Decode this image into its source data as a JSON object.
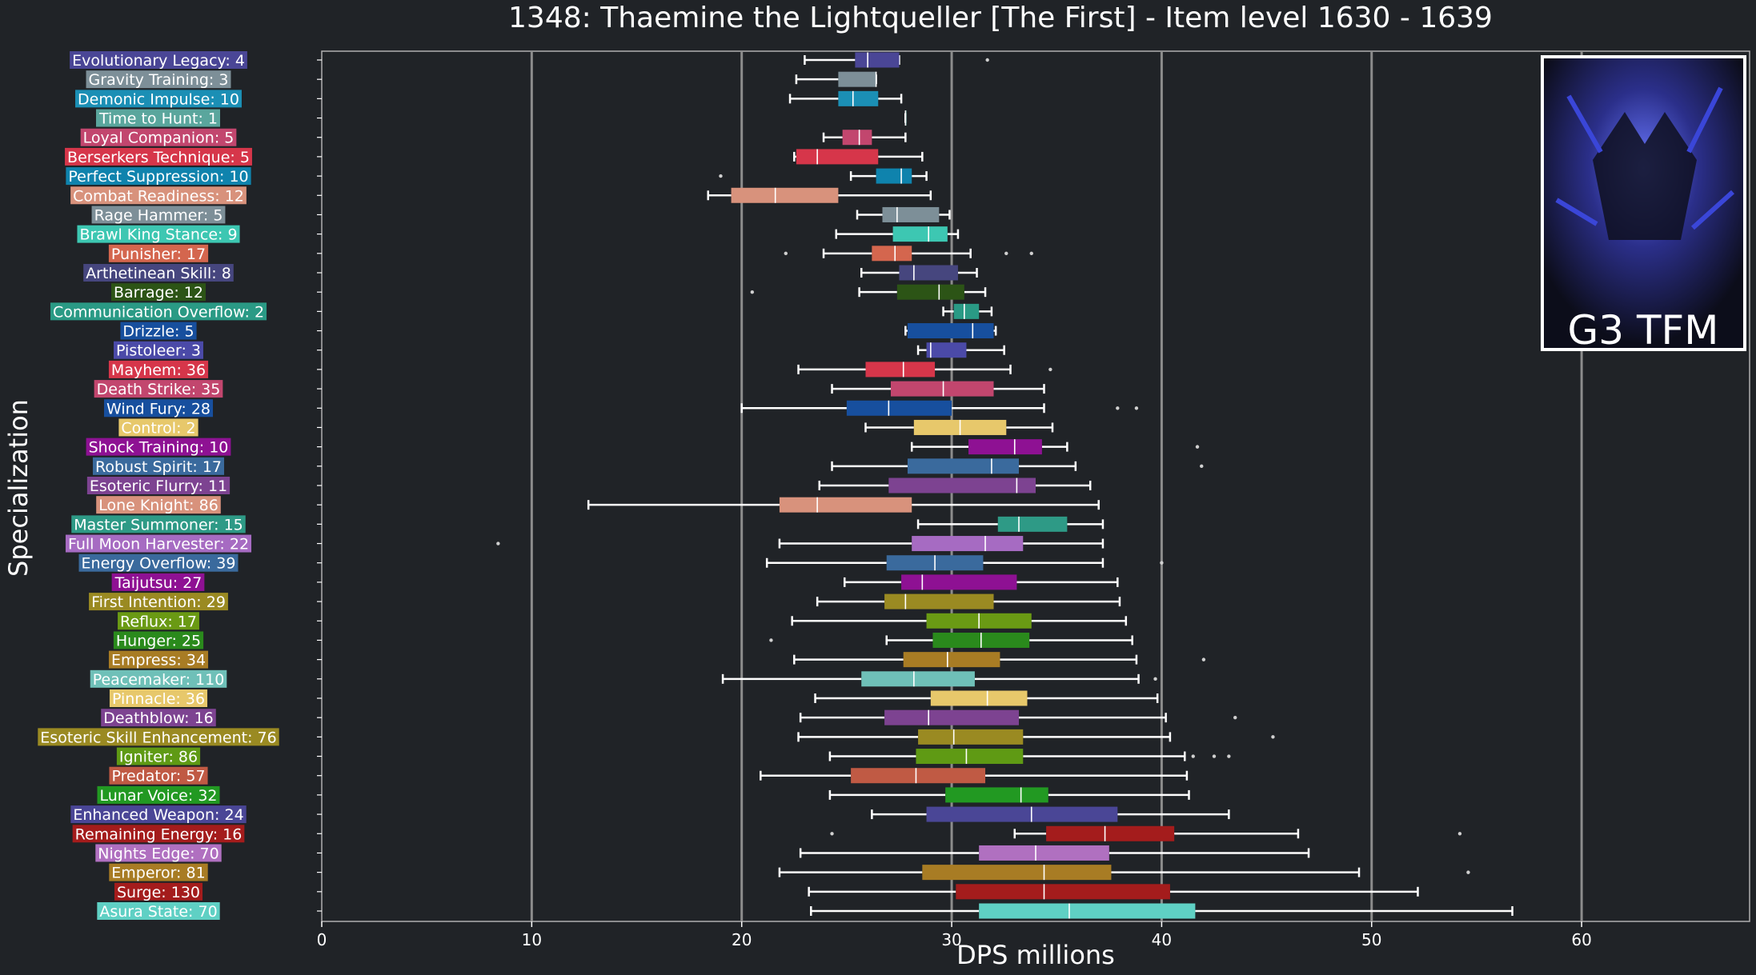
{
  "chart_data": {
    "type": "boxplot",
    "orientation": "horizontal",
    "title": "1348: Thaemine the Lightqueller [The First] - Item level 1630 - 1639",
    "xlabel": "DPS millions",
    "ylabel": "Specialization",
    "xlim": [
      0,
      68
    ],
    "xticks": [
      0,
      10,
      20,
      30,
      40,
      50,
      60
    ],
    "grid": "vertical",
    "badge_text": "G3 TFM",
    "colors": {
      "background": "#202327",
      "grid": "#8c8c8c",
      "text": "#ffffff",
      "whisker": "#ffffff"
    },
    "series": [
      {
        "label": "Evolutionary Legacy: 4",
        "color": "#4a4696",
        "whislo": 23.0,
        "q1": 25.4,
        "med": 26.0,
        "q3": 27.5,
        "whishi": 27.5,
        "fliers": [
          31.7
        ]
      },
      {
        "label": "Gravity Training: 3",
        "color": "#7d8f98",
        "whislo": 22.6,
        "q1": 24.6,
        "med": 26.4,
        "q3": 26.4,
        "whishi": 26.4,
        "fliers": []
      },
      {
        "label": "Demonic Impulse: 10",
        "color": "#1b8fb5",
        "whislo": 22.3,
        "q1": 24.6,
        "med": 25.3,
        "q3": 26.5,
        "whishi": 27.6,
        "fliers": []
      },
      {
        "label": "Time to Hunt: 1",
        "color": "#5aa69d",
        "whislo": 27.8,
        "q1": 27.8,
        "med": 27.8,
        "q3": 27.8,
        "whishi": 27.8,
        "fliers": []
      },
      {
        "label": "Loyal Companion: 5",
        "color": "#c2466e",
        "whislo": 23.9,
        "q1": 24.8,
        "med": 25.6,
        "q3": 26.2,
        "whishi": 27.8,
        "fliers": []
      },
      {
        "label": "Berserkers Technique: 5",
        "color": "#d6364a",
        "whislo": 22.5,
        "q1": 22.6,
        "med": 23.6,
        "q3": 26.5,
        "whishi": 28.6,
        "fliers": []
      },
      {
        "label": "Perfect Suppression: 10",
        "color": "#0f83ad",
        "whislo": 25.2,
        "q1": 26.4,
        "med": 27.6,
        "q3": 28.1,
        "whishi": 28.8,
        "fliers": [
          19.0
        ]
      },
      {
        "label": "Combat Readiness: 12",
        "color": "#d8927c",
        "whislo": 18.4,
        "q1": 19.5,
        "med": 21.6,
        "q3": 24.6,
        "whishi": 29.0,
        "fliers": []
      },
      {
        "label": "Rage Hammer: 5",
        "color": "#7d8f98",
        "whislo": 25.5,
        "q1": 26.7,
        "med": 27.4,
        "q3": 29.4,
        "whishi": 29.9,
        "fliers": []
      },
      {
        "label": "Brawl King Stance: 9",
        "color": "#3dc7b2",
        "whislo": 24.5,
        "q1": 27.2,
        "med": 28.9,
        "q3": 29.8,
        "whishi": 30.3,
        "fliers": []
      },
      {
        "label": "Punisher: 17",
        "color": "#d4664e",
        "whislo": 23.9,
        "q1": 26.2,
        "med": 27.3,
        "q3": 28.1,
        "whishi": 30.9,
        "fliers": [
          22.1,
          32.6,
          33.8
        ]
      },
      {
        "label": "Arthetinean Skill: 8",
        "color": "#46467e",
        "whislo": 25.7,
        "q1": 27.5,
        "med": 28.2,
        "q3": 30.3,
        "whishi": 31.2,
        "fliers": []
      },
      {
        "label": "Barrage: 12",
        "color": "#2c5416",
        "whislo": 25.6,
        "q1": 27.4,
        "med": 29.4,
        "q3": 30.6,
        "whishi": 31.6,
        "fliers": [
          20.5
        ]
      },
      {
        "label": "Communication Overflow: 2",
        "color": "#2a9a85",
        "whislo": 29.6,
        "q1": 30.1,
        "med": 30.6,
        "q3": 31.3,
        "whishi": 31.9,
        "fliers": []
      },
      {
        "label": "Drizzle: 5",
        "color": "#174f9e",
        "whislo": 27.8,
        "q1": 27.9,
        "med": 31.0,
        "q3": 32.0,
        "whishi": 32.1,
        "fliers": []
      },
      {
        "label": "Pistoleer: 3",
        "color": "#4b4aa8",
        "whislo": 28.4,
        "q1": 28.8,
        "med": 29.0,
        "q3": 30.7,
        "whishi": 32.5,
        "fliers": []
      },
      {
        "label": "Mayhem: 36",
        "color": "#d6364a",
        "whislo": 22.7,
        "q1": 25.9,
        "med": 27.7,
        "q3": 29.2,
        "whishi": 32.8,
        "fliers": [
          34.7
        ]
      },
      {
        "label": "Death Strike: 35",
        "color": "#c2466e",
        "whislo": 24.3,
        "q1": 27.1,
        "med": 29.6,
        "q3": 32.0,
        "whishi": 34.4,
        "fliers": []
      },
      {
        "label": "Wind Fury: 28",
        "color": "#174f9e",
        "whislo": 20.0,
        "q1": 25.0,
        "med": 27.0,
        "q3": 30.0,
        "whishi": 34.4,
        "fliers": [
          37.9,
          38.8
        ]
      },
      {
        "label": "Control: 2",
        "color": "#e7c86b",
        "whislo": 25.9,
        "q1": 28.2,
        "med": 30.4,
        "q3": 32.6,
        "whishi": 34.8,
        "fliers": []
      },
      {
        "label": "Shock Training: 10",
        "color": "#8e1193",
        "whislo": 28.1,
        "q1": 30.8,
        "med": 33.0,
        "q3": 34.3,
        "whishi": 35.5,
        "fliers": [
          41.7
        ]
      },
      {
        "label": "Robust Spirit: 17",
        "color": "#3a6a9d",
        "whislo": 24.3,
        "q1": 27.9,
        "med": 31.9,
        "q3": 33.2,
        "whishi": 35.9,
        "fliers": [
          41.9
        ]
      },
      {
        "label": "Esoteric Flurry: 11",
        "color": "#7d4391",
        "whislo": 23.7,
        "q1": 27.0,
        "med": 33.1,
        "q3": 34.0,
        "whishi": 36.6,
        "fliers": []
      },
      {
        "label": "Lone Knight: 86",
        "color": "#d8927c",
        "whislo": 12.7,
        "q1": 21.8,
        "med": 23.6,
        "q3": 28.1,
        "whishi": 37.0,
        "fliers": []
      },
      {
        "label": "Master Summoner: 15",
        "color": "#2e9a86",
        "whislo": 28.4,
        "q1": 32.2,
        "med": 33.2,
        "q3": 35.5,
        "whishi": 37.2,
        "fliers": []
      },
      {
        "label": "Full Moon Harvester: 22",
        "color": "#a66bc2",
        "whislo": 21.8,
        "q1": 28.1,
        "med": 31.6,
        "q3": 33.4,
        "whishi": 37.2,
        "fliers": [
          8.4
        ]
      },
      {
        "label": "Energy Overflow: 39",
        "color": "#3a6a9d",
        "whislo": 21.2,
        "q1": 26.9,
        "med": 29.2,
        "q3": 31.5,
        "whishi": 37.2,
        "fliers": [
          40.0
        ]
      },
      {
        "label": "Taijutsu: 27",
        "color": "#8e1193",
        "whislo": 24.9,
        "q1": 27.6,
        "med": 28.6,
        "q3": 33.1,
        "whishi": 37.9,
        "fliers": []
      },
      {
        "label": "First Intention: 29",
        "color": "#9a8a22",
        "whislo": 23.6,
        "q1": 26.8,
        "med": 27.8,
        "q3": 32.0,
        "whishi": 38.0,
        "fliers": []
      },
      {
        "label": "Reflux: 17",
        "color": "#6a9a14",
        "whislo": 22.4,
        "q1": 28.8,
        "med": 31.3,
        "q3": 33.8,
        "whishi": 38.3,
        "fliers": []
      },
      {
        "label": "Hunger: 25",
        "color": "#2a8a1c",
        "whislo": 26.9,
        "q1": 29.1,
        "med": 31.4,
        "q3": 33.7,
        "whishi": 38.6,
        "fliers": [
          21.4
        ]
      },
      {
        "label": "Empress: 34",
        "color": "#a87c24",
        "whislo": 22.5,
        "q1": 27.7,
        "med": 29.8,
        "q3": 32.3,
        "whishi": 38.8,
        "fliers": [
          42.0
        ]
      },
      {
        "label": "Peacemaker: 110",
        "color": "#6fc0b8",
        "whislo": 19.1,
        "q1": 25.7,
        "med": 28.2,
        "q3": 31.1,
        "whishi": 38.9,
        "fliers": [
          39.7
        ]
      },
      {
        "label": "Pinnacle: 36",
        "color": "#e7c86b",
        "whislo": 23.5,
        "q1": 29.0,
        "med": 31.7,
        "q3": 33.6,
        "whishi": 39.8,
        "fliers": []
      },
      {
        "label": "Deathblow: 16",
        "color": "#7d4391",
        "whislo": 22.8,
        "q1": 26.8,
        "med": 28.9,
        "q3": 33.2,
        "whishi": 40.2,
        "fliers": [
          43.5
        ]
      },
      {
        "label": "Esoteric Skill Enhancement: 76",
        "color": "#9a8a22",
        "whislo": 22.7,
        "q1": 28.4,
        "med": 30.1,
        "q3": 33.4,
        "whishi": 40.4,
        "fliers": [
          45.3
        ]
      },
      {
        "label": "Igniter: 86",
        "color": "#5f9a14",
        "whislo": 24.2,
        "q1": 28.3,
        "med": 30.7,
        "q3": 33.4,
        "whishi": 41.1,
        "fliers": [
          41.5,
          42.5,
          43.2
        ]
      },
      {
        "label": "Predator: 57",
        "color": "#c05a44",
        "whislo": 20.9,
        "q1": 25.2,
        "med": 28.3,
        "q3": 31.6,
        "whishi": 41.2,
        "fliers": []
      },
      {
        "label": "Lunar Voice: 32",
        "color": "#229922",
        "whislo": 24.2,
        "q1": 29.7,
        "med": 33.3,
        "q3": 34.6,
        "whishi": 41.3,
        "fliers": []
      },
      {
        "label": "Enhanced Weapon: 24",
        "color": "#4a4696",
        "whislo": 26.2,
        "q1": 28.8,
        "med": 33.8,
        "q3": 37.9,
        "whishi": 43.2,
        "fliers": []
      },
      {
        "label": "Remaining Energy: 16",
        "color": "#a41c1c",
        "whislo": 33.0,
        "q1": 34.5,
        "med": 37.3,
        "q3": 40.6,
        "whishi": 46.5,
        "fliers": [
          24.3,
          54.2
        ]
      },
      {
        "label": "Nights Edge: 70",
        "color": "#b070c0",
        "whislo": 22.8,
        "q1": 31.3,
        "med": 34.0,
        "q3": 37.5,
        "whishi": 47.0,
        "fliers": []
      },
      {
        "label": "Emperor: 81",
        "color": "#a87c24",
        "whislo": 21.8,
        "q1": 28.6,
        "med": 34.4,
        "q3": 37.6,
        "whishi": 49.4,
        "fliers": [
          54.6
        ]
      },
      {
        "label": "Surge: 130",
        "color": "#a41c1c",
        "whislo": 23.2,
        "q1": 30.2,
        "med": 34.4,
        "q3": 40.4,
        "whishi": 52.2,
        "fliers": []
      },
      {
        "label": "Asura State: 70",
        "color": "#5fd0c4",
        "whislo": 23.3,
        "q1": 31.3,
        "med": 35.6,
        "q3": 41.6,
        "whishi": 56.7,
        "fliers": []
      }
    ]
  }
}
